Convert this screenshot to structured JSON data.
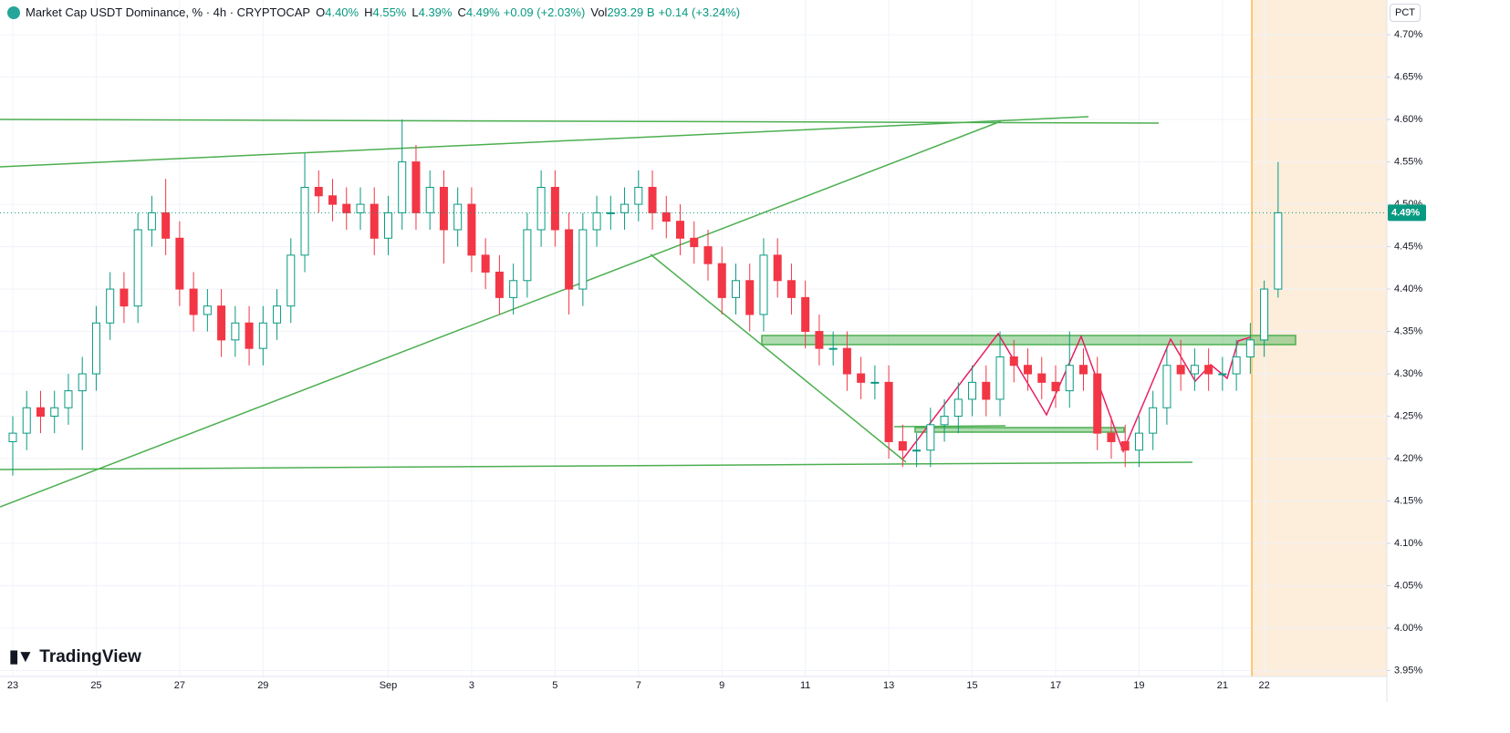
{
  "header": {
    "symbol": "Market Cap USDT Dominance, % · 4h · CRYPTOCAP",
    "ohlc": [
      [
        "O",
        "4.40%"
      ],
      [
        "H",
        "4.55%"
      ],
      [
        "L",
        "4.39%"
      ],
      [
        "C",
        "4.49%"
      ]
    ],
    "change": "+0.09 (+2.03%)",
    "vol_label": "Vol",
    "volume": "293.29 B",
    "vol_change": "+0.14 (+3.24%)",
    "scale_mode": "PCT",
    "brand": "TradingView"
  },
  "chart_data": {
    "type": "candlestick",
    "categories": [
      "23",
      null,
      null,
      null,
      null,
      null,
      "25",
      null,
      null,
      null,
      null,
      null,
      "27",
      null,
      null,
      null,
      null,
      null,
      "29",
      null,
      null,
      null,
      null,
      null,
      null,
      null,
      null,
      "Sep",
      null,
      null,
      null,
      null,
      null,
      "3",
      null,
      null,
      null,
      null,
      null,
      "5",
      null,
      null,
      null,
      null,
      null,
      "7",
      null,
      null,
      null,
      null,
      null,
      "9",
      null,
      null,
      null,
      null,
      null,
      "11",
      null,
      null,
      null,
      null,
      null,
      "13",
      null,
      null,
      null,
      null,
      null,
      "15",
      null,
      null,
      null,
      null,
      null,
      "17",
      null,
      null,
      null,
      null,
      null,
      "19",
      null,
      null,
      null,
      null,
      null,
      "21",
      null,
      null,
      "22",
      null
    ],
    "open": [
      4.22,
      4.23,
      4.26,
      4.25,
      4.26,
      4.28,
      4.3,
      4.36,
      4.4,
      4.38,
      4.47,
      4.49,
      4.46,
      4.4,
      4.37,
      4.38,
      4.34,
      4.36,
      4.33,
      4.36,
      4.38,
      4.44,
      4.52,
      4.51,
      4.5,
      4.49,
      4.5,
      4.46,
      4.49,
      4.55,
      4.49,
      4.52,
      4.47,
      4.5,
      4.44,
      4.42,
      4.39,
      4.41,
      4.47,
      4.52,
      4.47,
      4.4,
      4.47,
      4.49,
      4.49,
      4.5,
      4.52,
      4.49,
      4.48,
      4.46,
      4.45,
      4.43,
      4.39,
      4.41,
      4.37,
      4.44,
      4.41,
      4.39,
      4.35,
      4.33,
      4.33,
      4.3,
      4.29,
      4.29,
      4.22,
      4.21,
      4.21,
      4.24,
      4.25,
      4.27,
      4.29,
      4.27,
      4.32,
      4.31,
      4.3,
      4.29,
      4.28,
      4.31,
      4.3,
      4.23,
      4.22,
      4.21,
      4.23,
      4.26,
      4.31,
      4.3,
      4.31,
      4.3,
      4.3,
      4.32,
      4.34,
      4.4
    ],
    "high": [
      4.25,
      4.28,
      4.28,
      4.28,
      4.3,
      4.32,
      4.38,
      4.42,
      4.42,
      4.49,
      4.51,
      4.53,
      4.48,
      4.42,
      4.4,
      4.4,
      4.38,
      4.38,
      4.38,
      4.4,
      4.46,
      4.56,
      4.54,
      4.53,
      4.52,
      4.52,
      4.52,
      4.51,
      4.6,
      4.57,
      4.54,
      4.54,
      4.52,
      4.52,
      4.46,
      4.44,
      4.43,
      4.49,
      4.54,
      4.54,
      4.49,
      4.49,
      4.51,
      4.51,
      4.52,
      4.54,
      4.54,
      4.51,
      4.5,
      4.48,
      4.47,
      4.45,
      4.43,
      4.43,
      4.46,
      4.46,
      4.43,
      4.41,
      4.37,
      4.35,
      4.35,
      4.32,
      4.31,
      4.31,
      4.24,
      4.23,
      4.26,
      4.27,
      4.29,
      4.31,
      4.31,
      4.35,
      4.34,
      4.33,
      4.32,
      4.31,
      4.35,
      4.33,
      4.32,
      4.25,
      4.24,
      4.25,
      4.28,
      4.33,
      4.34,
      4.33,
      4.33,
      4.32,
      4.34,
      4.36,
      4.41,
      4.55
    ],
    "low": [
      4.18,
      4.21,
      4.23,
      4.23,
      4.24,
      4.21,
      4.28,
      4.34,
      4.36,
      4.36,
      4.45,
      4.44,
      4.38,
      4.35,
      4.35,
      4.32,
      4.32,
      4.31,
      4.31,
      4.34,
      4.36,
      4.42,
      4.49,
      4.48,
      4.47,
      4.47,
      4.44,
      4.44,
      4.47,
      4.47,
      4.47,
      4.43,
      4.45,
      4.42,
      4.4,
      4.37,
      4.37,
      4.39,
      4.45,
      4.45,
      4.37,
      4.38,
      4.45,
      4.47,
      4.47,
      4.48,
      4.47,
      4.46,
      4.44,
      4.43,
      4.41,
      4.37,
      4.37,
      4.35,
      4.35,
      4.39,
      4.37,
      4.33,
      4.31,
      4.31,
      4.28,
      4.27,
      4.27,
      4.2,
      4.19,
      4.19,
      4.19,
      4.22,
      4.23,
      4.25,
      4.25,
      4.25,
      4.29,
      4.28,
      4.27,
      4.26,
      4.26,
      4.28,
      4.21,
      4.2,
      4.19,
      4.19,
      4.21,
      4.24,
      4.28,
      4.28,
      4.28,
      4.28,
      4.28,
      4.3,
      4.32,
      4.39
    ],
    "close": [
      4.23,
      4.26,
      4.25,
      4.26,
      4.28,
      4.3,
      4.36,
      4.4,
      4.38,
      4.47,
      4.49,
      4.46,
      4.4,
      4.37,
      4.38,
      4.34,
      4.36,
      4.33,
      4.36,
      4.38,
      4.44,
      4.52,
      4.51,
      4.5,
      4.49,
      4.5,
      4.46,
      4.49,
      4.55,
      4.49,
      4.52,
      4.47,
      4.5,
      4.44,
      4.42,
      4.39,
      4.41,
      4.47,
      4.52,
      4.47,
      4.4,
      4.47,
      4.49,
      4.49,
      4.5,
      4.52,
      4.49,
      4.48,
      4.46,
      4.45,
      4.43,
      4.39,
      4.41,
      4.37,
      4.44,
      4.41,
      4.39,
      4.35,
      4.33,
      4.33,
      4.3,
      4.29,
      4.29,
      4.22,
      4.21,
      4.21,
      4.24,
      4.25,
      4.27,
      4.29,
      4.27,
      4.32,
      4.31,
      4.3,
      4.29,
      4.28,
      4.31,
      4.3,
      4.23,
      4.22,
      4.21,
      4.23,
      4.26,
      4.31,
      4.3,
      4.31,
      4.3,
      4.3,
      4.32,
      4.34,
      4.4,
      4.49
    ],
    "up_color": "#089981",
    "down_color": "#f23645",
    "ylim": [
      3.943,
      4.741
    ],
    "yticks": [
      {
        "value": 4.7,
        "label": "4.70%"
      },
      {
        "value": 4.65,
        "label": "4.65%"
      },
      {
        "value": 4.6,
        "label": "4.60%"
      },
      {
        "value": 4.55,
        "label": "4.55%"
      },
      {
        "value": 4.5,
        "label": "4.50%"
      },
      {
        "value": 4.45,
        "label": "4.45%"
      },
      {
        "value": 4.4,
        "label": "4.40%"
      },
      {
        "value": 4.35,
        "label": "4.35%"
      },
      {
        "value": 4.3,
        "label": "4.30%"
      },
      {
        "value": 4.25,
        "label": "4.25%"
      },
      {
        "value": 4.2,
        "label": "4.20%"
      },
      {
        "value": 4.15,
        "label": "4.15%"
      },
      {
        "value": 4.1,
        "label": "4.10%"
      },
      {
        "value": 4.05,
        "label": "4.05%"
      },
      {
        "value": 4.0,
        "label": "4.00%"
      },
      {
        "value": 3.95,
        "label": "3.95%"
      }
    ],
    "last_price": {
      "value": 4.49,
      "label": "4.49%"
    },
    "grid": true
  }
}
